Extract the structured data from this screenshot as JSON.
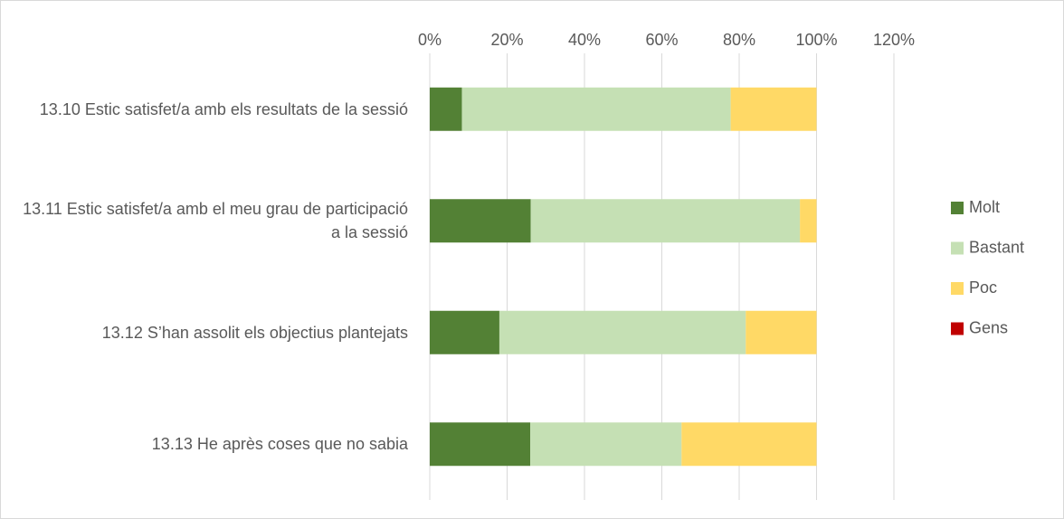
{
  "chart_data": {
    "type": "stacked-barh",
    "categories": [
      "13.10 Estic satisfet/a amb els resultats de la sessió",
      "13.11 Estic satisfet/a amb el meu grau de participació a la sessió",
      "13.12 S’han assolit els objectius plantejats",
      "13.13 He après coses que no sabia"
    ],
    "series": [
      {
        "name": "Molt",
        "color": "#538135",
        "values": [
          8.3,
          26.1,
          18,
          26
        ]
      },
      {
        "name": "Bastant",
        "color": "#c5e0b4",
        "values": [
          69.5,
          69.6,
          63.7,
          39.1
        ]
      },
      {
        "name": "Poc",
        "color": "#ffd966",
        "values": [
          22.2,
          4.3,
          18.3,
          34.9
        ]
      },
      {
        "name": "Gens",
        "color": "#c00000",
        "values": [
          0,
          0,
          0,
          0
        ]
      }
    ],
    "xlim": [
      0,
      120
    ],
    "xticks": [
      {
        "value": 0,
        "label": "0%"
      },
      {
        "value": 20,
        "label": "20%"
      },
      {
        "value": 40,
        "label": "40%"
      },
      {
        "value": 60,
        "label": "60%"
      },
      {
        "value": 80,
        "label": "80%"
      },
      {
        "value": 100,
        "label": "100%"
      },
      {
        "value": 120,
        "label": "120%"
      }
    ],
    "grid": true,
    "legend": "right"
  }
}
